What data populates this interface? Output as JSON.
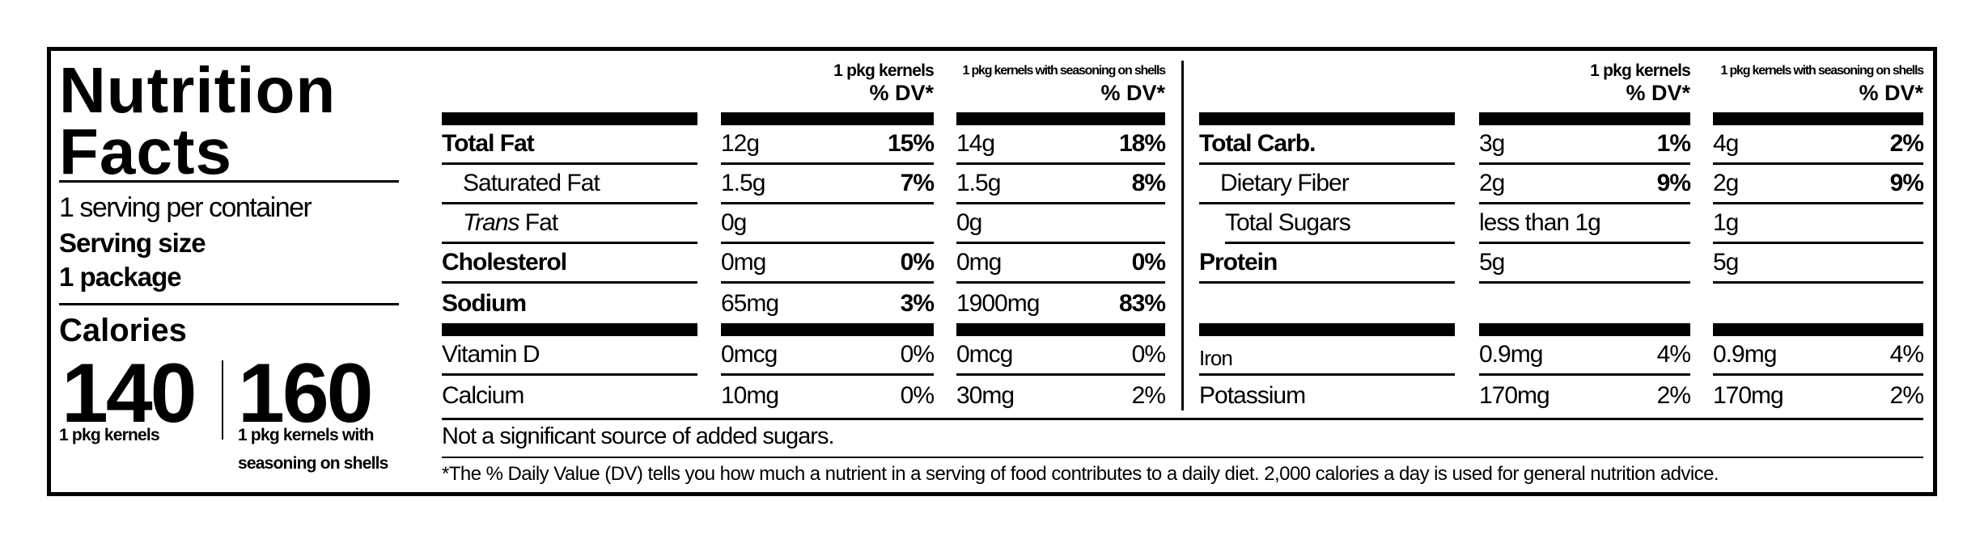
{
  "title": {
    "line1": "Nutrition",
    "line2": "Facts"
  },
  "servings": {
    "per_container": "1 serving per container",
    "size_label": "Serving size",
    "size_value": "1 package"
  },
  "calories": {
    "label": "Calories",
    "values": [
      {
        "amount": "140",
        "desc": "1 pkg kernels",
        "desc2": ""
      },
      {
        "amount": "160",
        "desc": "1 pkg kernels with",
        "desc2": "seasoning on shells"
      }
    ]
  },
  "columns": {
    "col1_name": "1 pkg kernels",
    "col2_name": "1 pkg kernels with seasoning on shells",
    "dv_label": "% DV*"
  },
  "left_nutrients": [
    {
      "label": "Total Fat",
      "label_em": "",
      "style": "bold",
      "v1": "12g",
      "d1": "15%",
      "v2": "14g",
      "d2": "18%"
    },
    {
      "label": "Saturated Fat",
      "label_em": "",
      "style": "indent",
      "v1": "1.5g",
      "d1": "7%",
      "v2": "1.5g",
      "d2": "8%"
    },
    {
      "label": " Fat",
      "label_em": "Trans",
      "style": "indent",
      "v1": "0g",
      "d1": "",
      "v2": "0g",
      "d2": ""
    },
    {
      "label": "Cholesterol",
      "label_em": "",
      "style": "bold",
      "v1": "0mg",
      "d1": "0%",
      "v2": "0mg",
      "d2": "0%"
    },
    {
      "label": "Sodium",
      "label_em": "",
      "style": "bold",
      "v1": "65mg",
      "d1": "3%",
      "v2": "1900mg",
      "d2": "83%"
    }
  ],
  "left_minerals": [
    {
      "label": "Vitamin D",
      "v1": "0mcg",
      "d1": "0%",
      "v2": "0mcg",
      "d2": "0%"
    },
    {
      "label": "Calcium",
      "v1": "10mg",
      "d1": "0%",
      "v2": "30mg",
      "d2": "2%"
    }
  ],
  "right_nutrients": [
    {
      "label": "Total Carb.",
      "label_em": "",
      "style": "bold",
      "v1": "3g",
      "d1": "1%",
      "v2": "4g",
      "d2": "2%"
    },
    {
      "label": "Dietary Fiber",
      "label_em": "",
      "style": "indent",
      "v1": "2g",
      "d1": "9%",
      "v2": "2g",
      "d2": "9%"
    },
    {
      "label": "Total Sugars",
      "label_em": "",
      "style": "indent",
      "v1": "less than 1g",
      "d1": "",
      "v2": "1g",
      "d2": ""
    },
    {
      "label": "Protein",
      "label_em": "",
      "style": "bold",
      "v1": "5g",
      "d1": "",
      "v2": "5g",
      "d2": ""
    },
    {
      "label": "",
      "label_em": "",
      "style": "empty",
      "v1": "",
      "d1": "",
      "v2": "",
      "d2": ""
    }
  ],
  "right_minerals": [
    {
      "label": "Iron",
      "v1": "0.9mg",
      "d1": "4%",
      "v2": "0.9mg",
      "d2": "4%"
    },
    {
      "label": "Potassium",
      "v1": "170mg",
      "d1": "2%",
      "v2": "170mg",
      "d2": "2%"
    }
  ],
  "added_sugars_note": "Not a significant source of added sugars.",
  "footnote": "*The % Daily Value (DV) tells you how much a nutrient in a serving of food contributes to a daily diet. 2,000 calories a day is used for general nutrition advice."
}
